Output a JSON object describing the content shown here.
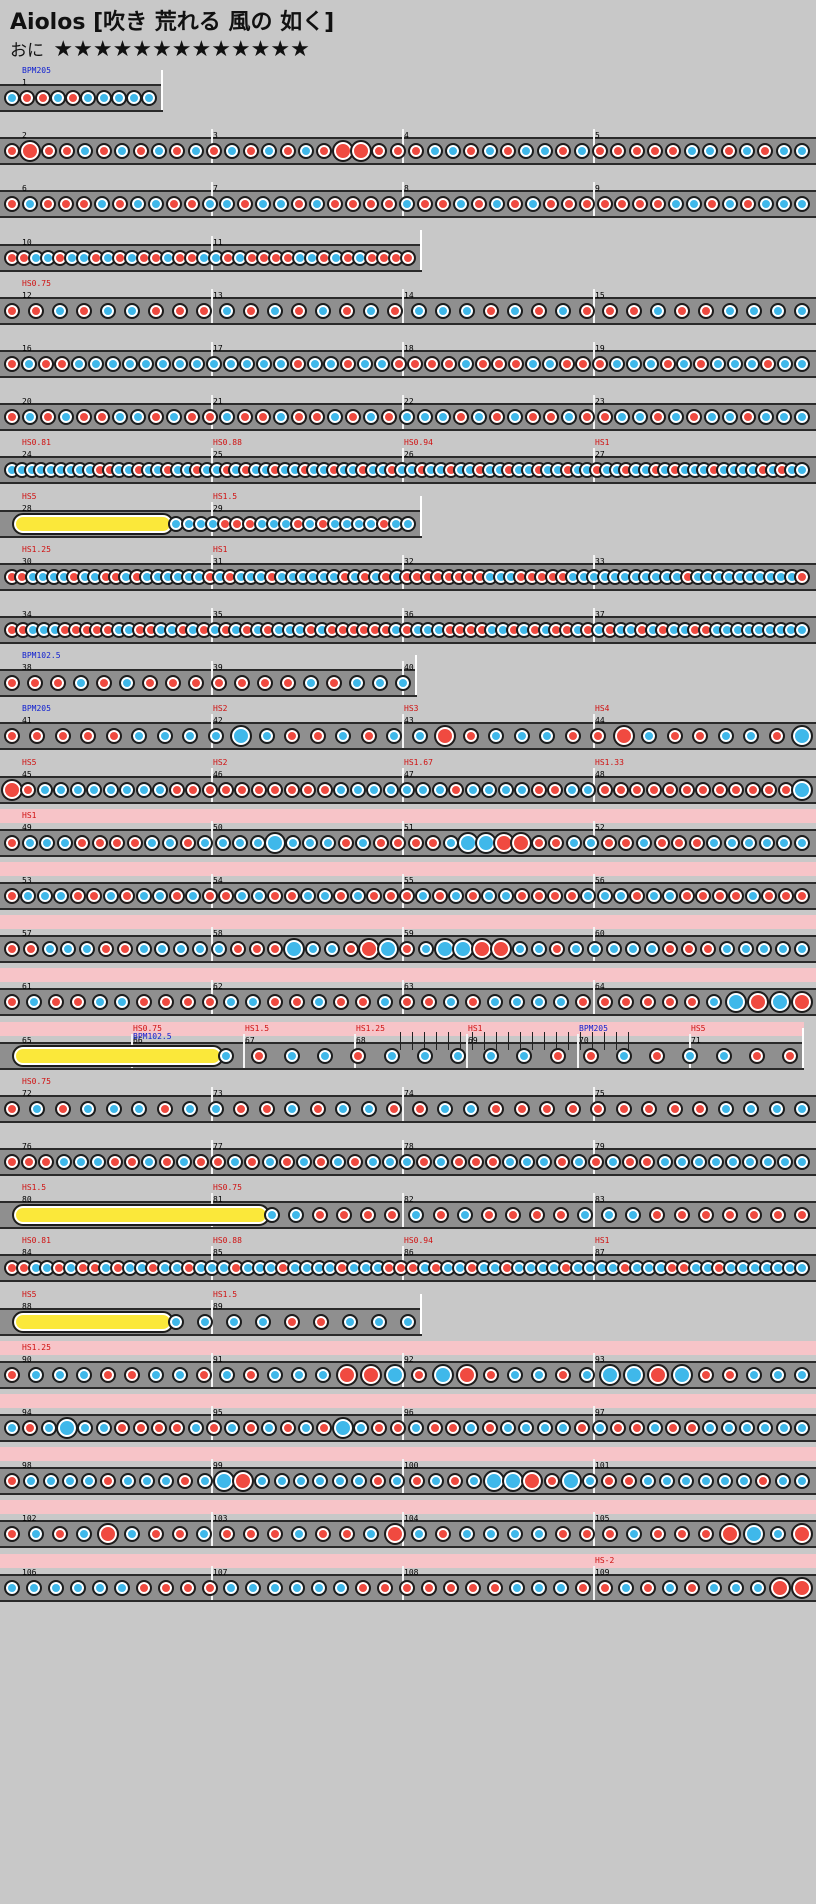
{
  "header": {
    "title": "Aiolos [吹き 荒れる 風の 如く]",
    "difficulty": "おに",
    "stars": "★★★★★★★★★★★★★",
    "star_count": 13
  },
  "colors": {
    "don": "#f04a40",
    "ka": "#3fb8ea",
    "roll": "#fbe83a",
    "gogo_band": "#f7c4c8",
    "track": "#8f8f8f",
    "background": "#c8c8c8"
  },
  "rows": [
    {
      "measures": [
        1
      ],
      "ends_at_measure_fraction": 0.75,
      "events": [
        {
          "m": 1,
          "text": "BPM205",
          "kind": "bpm"
        }
      ],
      "gogo": false,
      "notes": "kddkdkkkkk"
    },
    {
      "measures": [
        2,
        3,
        4,
        5
      ],
      "events": [],
      "gogo": false,
      "notes": "dDddkdkdkdkdkdkdkdDDdddkkdkdkkdkdddddkkdkdkk"
    },
    {
      "measures": [
        6,
        7,
        8,
        9
      ],
      "events": [],
      "gogo": false,
      "notes": "dkdddkdkkddkkdkkdkddddkddkdkdkdddddddkkdkdkkk"
    },
    {
      "measures": [
        10,
        11
      ],
      "events": [],
      "gogo": false,
      "notes": "ddkkdkkdkdkddkddkkdkddddkkdkdkdddd"
    },
    {
      "measures": [
        12,
        13,
        14,
        15
      ],
      "events": [
        {
          "m": 12,
          "text": "HS0.75",
          "kind": "hs"
        }
      ],
      "gogo": false,
      "notes": "ddkdkkdddkdkdkdkdkkkdkdkdddkddkkkk"
    },
    {
      "measures": [
        16,
        17,
        18,
        19
      ],
      "events": [],
      "gogo": false,
      "notes": "dkddkkkkkkkkkkkkkdkkdkkddddkdddkkdddkkkdkdkkkdkk"
    },
    {
      "measures": [
        20,
        21,
        22,
        23
      ],
      "events": [],
      "gogo": false,
      "notes": "dkdkddkkdkddkddkddkdkdkkkdkdkddkddkkdkdkkdkkk"
    },
    {
      "measures": [
        24,
        25,
        26,
        27
      ],
      "events": [
        {
          "m": 24,
          "text": "HS0.81",
          "kind": "hs"
        },
        {
          "m": 25,
          "text": "HS0.88",
          "kind": "hs"
        },
        {
          "m": 26,
          "text": "HS0.94",
          "kind": "hs"
        },
        {
          "m": 27,
          "text": "HS1",
          "kind": "hs"
        }
      ],
      "gogo": false,
      "notes": "kkkkkkkkkddkkdkkdkkdkkdkdkkdkkdkkdkkdkkdkkdkkdkkdkkdkkdkkdkkdkkdkkdkdkkkdkkkkdkdkk"
    },
    {
      "measures": [
        28,
        29
      ],
      "events": [
        {
          "m": 28,
          "text": "HS5",
          "kind": "hs"
        },
        {
          "m": 29,
          "text": "HS1.5",
          "kind": "hs"
        }
      ],
      "gogo": false,
      "roll": true,
      "notes": "kkkkdddkkkdkdkkkkdkk"
    },
    {
      "measures": [
        30,
        31,
        32,
        33
      ],
      "events": [
        {
          "m": 30,
          "text": "HS1.25",
          "kind": "hs"
        },
        {
          "m": 31,
          "text": "HS1",
          "kind": "hs"
        }
      ],
      "gogo": false,
      "notes": "ddkkkkdkkddkdkkkkkkdkdkkkdkkkkkkdkdkdkddddddddkkkdddddkkkkkkkkkkkdkkkkkkkkkkd"
    },
    {
      "measures": [
        34,
        35,
        36,
        37
      ],
      "events": [],
      "gogo": false,
      "notes": "ddkkkdddddkkddkkdkdkdkdkdkkkdkddddddkdkkkddddkkdkdkddkdkdkkdkdkkddkkkkkkkkk"
    },
    {
      "measures": [
        38,
        39,
        40
      ],
      "ends_at_measure_fraction": 0.08,
      "events": [
        {
          "m": 38,
          "text": "BPM102.5",
          "kind": "bpm"
        }
      ],
      "gogo": false,
      "notes": "dddkdkdddddddkdkkk"
    },
    {
      "measures": [
        41,
        42,
        43,
        44
      ],
      "events": [
        {
          "m": 41,
          "text": "BPM205",
          "kind": "bpm"
        },
        {
          "m": 42,
          "text": "HS2",
          "kind": "hs"
        },
        {
          "m": 43,
          "text": "HS3",
          "kind": "hs"
        },
        {
          "m": 44,
          "text": "HS4",
          "kind": "hs"
        }
      ],
      "gogo": false,
      "notes": "dddddkkkkKkddkdkkDdkkkddDkddkkdK"
    },
    {
      "measures": [
        45,
        46,
        47,
        48
      ],
      "events": [
        {
          "m": 45,
          "text": "HS5",
          "kind": "hs"
        },
        {
          "m": 46,
          "text": "HS2",
          "kind": "hs"
        },
        {
          "m": 47,
          "text": "HS1.67",
          "kind": "hs"
        },
        {
          "m": 48,
          "text": "HS1.33",
          "kind": "hs"
        }
      ],
      "gogo": false,
      "notes": "DdkkkkkkkkddddddddddkkkkkkkdkkkkddkkddddddddddddK"
    },
    {
      "measures": [
        49,
        50,
        51,
        52
      ],
      "events": [
        {
          "m": 49,
          "text": "HS1",
          "kind": "hs"
        }
      ],
      "gogo": true,
      "notes": "dkkkddddkkdkkkkKkkkdkddddkKKDDddkkddkdddkkkkkk"
    },
    {
      "measures": [
        53,
        54,
        55,
        56
      ],
      "events": [],
      "gogo": true,
      "notes": "dkkkddkdkkdkddkkddkkdkdddkdkdkkddddkkkdkkddddkddd"
    },
    {
      "measures": [
        57,
        58,
        59,
        60
      ],
      "events": [],
      "gogo": true,
      "notes": "ddkkkddkkkkkdddKkkdDKdkKKDDkkdkkkkkdddkkkkk"
    },
    {
      "measures": [
        61,
        62,
        63,
        64
      ],
      "events": [],
      "gogo": true,
      "notes": "dkddkkddddkkddkddkddkdkkkkddddddkKDKD"
    },
    {
      "measures": [
        65,
        66,
        67,
        68,
        69,
        70,
        71
      ],
      "events": [
        {
          "m": 66,
          "text": "HS0.75",
          "kind": "hs"
        },
        {
          "m": 66,
          "text": "BPM102.5",
          "kind": "bpm"
        },
        {
          "m": 67,
          "text": "HS1.5",
          "kind": "hs"
        },
        {
          "m": 68,
          "text": "HS1.25",
          "kind": "hs"
        },
        {
          "m": 69,
          "text": "HS1",
          "kind": "hs"
        },
        {
          "m": 70,
          "text": "BPM205",
          "kind": "bpm"
        },
        {
          "m": 71,
          "text": "HS5",
          "kind": "hs"
        }
      ],
      "gogo": true,
      "roll": true,
      "notes": "kdkkdkkkkkddkdkkdd"
    },
    {
      "measures": [
        72,
        73,
        74,
        75
      ],
      "events": [
        {
          "m": 72,
          "text": "HS0.75",
          "kind": "hs"
        }
      ],
      "gogo": false,
      "notes": "dkdkkkdkkddkdkkddkkdddddddddkkkk"
    },
    {
      "measures": [
        76,
        77,
        78,
        79
      ],
      "events": [],
      "gogo": false,
      "notes": "dddkkkddkdkddkdkdkdkdkkkdkdddkkkdkdkddkkkkkkkkk"
    },
    {
      "measures": [
        80,
        81,
        82,
        83
      ],
      "events": [
        {
          "m": 80,
          "text": "HS1.5",
          "kind": "hs"
        },
        {
          "m": 81,
          "text": "HS0.75",
          "kind": "hs"
        }
      ],
      "gogo": false,
      "roll": true,
      "notes": "kkddddkdkddddkkkddddddd"
    },
    {
      "measures": [
        84,
        85,
        86,
        87
      ],
      "events": [
        {
          "m": 84,
          "text": "HS0.81",
          "kind": "hs"
        },
        {
          "m": 85,
          "text": "HS0.88",
          "kind": "hs"
        },
        {
          "m": 86,
          "text": "HS0.94",
          "kind": "hs"
        },
        {
          "m": 87,
          "text": "HS1",
          "kind": "hs"
        }
      ],
      "gogo": false,
      "notes": "ddkkdkddkdkkdkkdkkkdkkkdkkkkdkkkdddkdkkdkkdkkkkdkkkkdkkkddkkdkkkkkkk"
    },
    {
      "measures": [
        88,
        89
      ],
      "events": [
        {
          "m": 88,
          "text": "HS5",
          "kind": "hs"
        },
        {
          "m": 89,
          "text": "HS1.5",
          "kind": "hs"
        }
      ],
      "gogo": false,
      "roll": true,
      "notes": "kkkkddkkk"
    },
    {
      "measures": [
        90,
        91,
        92,
        93
      ],
      "events": [
        {
          "m": 90,
          "text": "HS1.25",
          "kind": "hs"
        }
      ],
      "gogo": true,
      "notes": "dkkkddkkdkdkkkDDKdKDdkkdkKKDKddkkk"
    },
    {
      "measures": [
        94,
        95,
        96,
        97
      ],
      "events": [],
      "gogo": true,
      "notes": "kdkKkkddddkdkdkdkdKkddkddkdkkkkdkddkddkkkkkk"
    },
    {
      "measures": [
        98,
        99,
        100,
        101
      ],
      "events": [],
      "gogo": true,
      "notes": "dkkkkdkkkdkKDkkkkkkdkdkdkKKDdKkddkkkkkkdkk"
    },
    {
      "measures": [
        102,
        103,
        104,
        105
      ],
      "events": [],
      "gogo": true,
      "notes": "dkdkDkddkdddkddkDkdkkkkdddkdddDKkD"
    },
    {
      "measures": [
        106,
        107,
        108,
        109
      ],
      "events": [
        {
          "m": 109,
          "text": "HS-2",
          "kind": "hs"
        }
      ],
      "gogo": true,
      "notes": "kkkkkkddddkkkkkkdddddddkkkddkdkdkkkDD"
    }
  ]
}
